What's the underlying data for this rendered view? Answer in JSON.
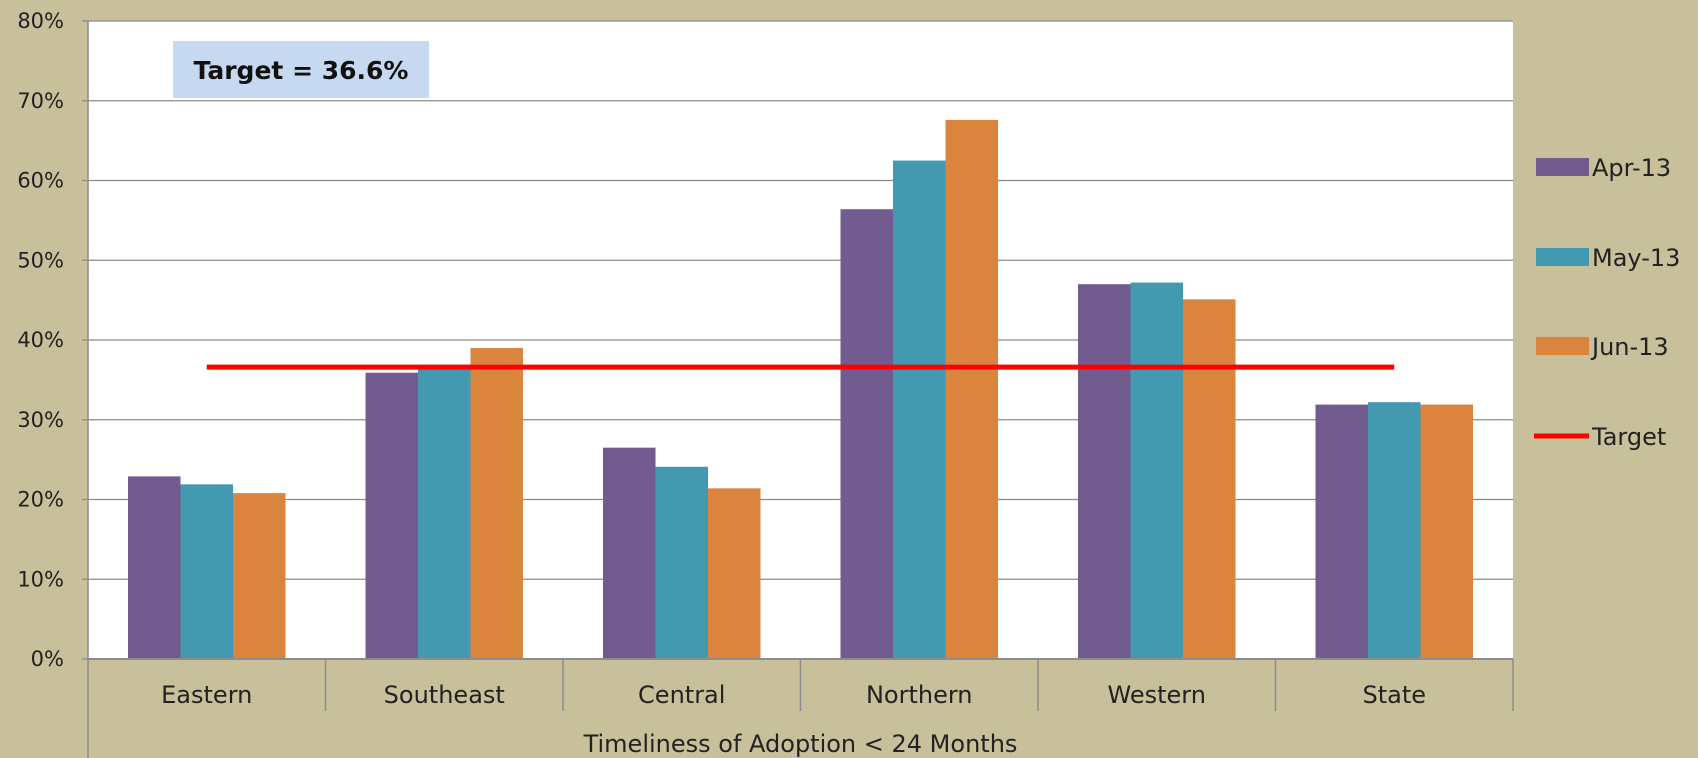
{
  "chart_data": {
    "type": "bar",
    "title": "",
    "xlabel": "Timeliness of Adoption < 24 Months",
    "ylabel": "",
    "ylim": [
      0,
      0.8
    ],
    "yticks": [
      0,
      0.1,
      0.2,
      0.3,
      0.4,
      0.5,
      0.6,
      0.7,
      0.8
    ],
    "ytick_labels": [
      "0%",
      "10%",
      "20%",
      "30%",
      "40%",
      "50%",
      "60%",
      "70%",
      "80%"
    ],
    "grid": true,
    "legend_position": "right",
    "categories": [
      "Eastern",
      "Southeast",
      "Central",
      "Northern",
      "Western",
      "State"
    ],
    "series": [
      {
        "name": "Apr-13",
        "color": "#725b8f",
        "values": [
          0.229,
          0.359,
          0.265,
          0.564,
          0.47,
          0.319
        ]
      },
      {
        "name": "May-13",
        "color": "#4299b0",
        "values": [
          0.219,
          0.369,
          0.241,
          0.625,
          0.472,
          0.322
        ]
      },
      {
        "name": "Jun-13",
        "color": "#da843e",
        "values": [
          0.208,
          0.39,
          0.214,
          0.676,
          0.451,
          0.319
        ]
      }
    ],
    "target": {
      "name": "Target",
      "value": 0.366,
      "color": "#ff0000"
    },
    "annotation": "Target = 36.6%",
    "plot_background": "#ffffff",
    "page_background": "#c8bf9b",
    "annotation_background": "#c6d9f0"
  }
}
